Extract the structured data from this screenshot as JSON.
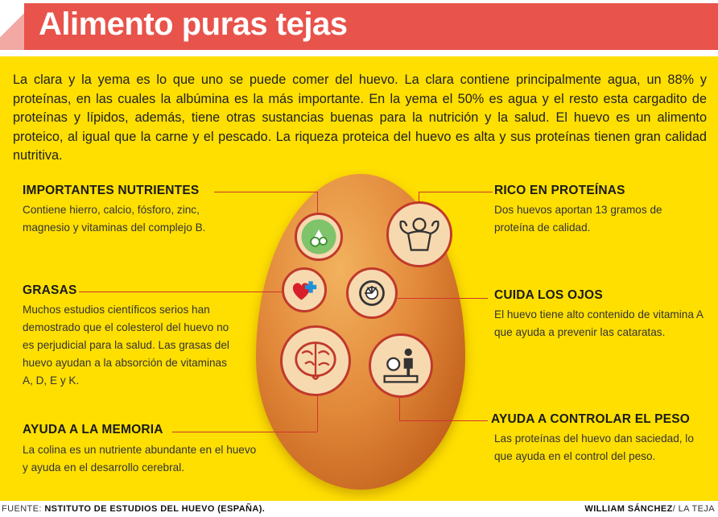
{
  "header": {
    "title": "Alimento puras tejas"
  },
  "intro": "La clara y la yema es lo que uno se puede comer del huevo. La clara contiene principalmente agua, un 88% y proteínas, en las cuales la albúmina es la más importante. En la yema el 50% es agua y el resto esta cargadito de proteínas y lípidos, además, tiene otras sustancias buenas para la nutrición y la salud. El huevo es un alimento proteico, al igual que la carne y el pescado. La riqueza proteica del huevo es alta y sus proteínas tienen gran calidad nutritiva.",
  "sections": {
    "nutrientes": {
      "title": "IMPORTANTES NUTRIENTES",
      "body": "Contiene hierro, calcio, fósforo, zinc, magnesio y vitaminas del complejo B."
    },
    "grasas": {
      "title": "GRASAS",
      "body": "Muchos estudios científicos serios han demostrado que el colesterol del huevo no es perjudicial para la salud. Las grasas del huevo ayudan a la absorción de vitaminas A, D, E y K."
    },
    "memoria": {
      "title": "AYUDA A LA MEMORIA",
      "body": "La colina es un nutriente abundante en el huevo y ayuda en el desarrollo cerebral."
    },
    "proteinas": {
      "title": "RICO EN PROTEÍNAS",
      "body": "Dos huevos aportan 13 gramos de proteína de calidad."
    },
    "ojos": {
      "title": "CUIDA LOS OJOS",
      "body": "El huevo tiene alto contenido de vitamina A que ayuda a prevenir las cataratas."
    },
    "peso": {
      "title": "AYUDA A CONTROLAR EL PESO",
      "body": "Las proteínas del huevo dan saciedad, lo que ayuda en el control del peso."
    }
  },
  "footer": {
    "source_label": "FUENTE:",
    "source": "NSTITUTO DE ESTUDIOS DEL HUEVO (ESPAÑA).",
    "author": "WILLIAM SÁNCHEZ",
    "outlet": "/ LA TEJA"
  },
  "colors": {
    "header": "#e8534b",
    "panel": "#ffdf00",
    "accent": "#d0352b"
  },
  "icons": [
    "nutrients-icon",
    "heart-plus-icon",
    "brain-icon",
    "muscle-icon",
    "eye-icon",
    "scale-icon"
  ]
}
